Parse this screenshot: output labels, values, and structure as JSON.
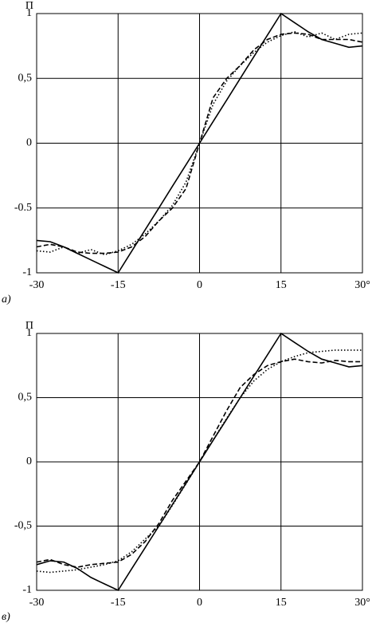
{
  "chart_data": [
    {
      "type": "line",
      "label": "а)",
      "ylabel": "П",
      "x": [
        -30,
        -27.5,
        -25,
        -22.5,
        -20,
        -17.5,
        -15,
        -12.5,
        -10,
        -7.5,
        -5,
        -2.5,
        0,
        2.5,
        5,
        7.5,
        10,
        12.5,
        15,
        17.5,
        20,
        22.5,
        25,
        27.5,
        30
      ],
      "xlim": [
        -30,
        30
      ],
      "ylim": [
        -1,
        1
      ],
      "xticks": [
        -30,
        -15,
        0,
        15,
        {
          "value": 30,
          "label": "30°"
        }
      ],
      "yticks": [
        1,
        {
          "value": 0.5,
          "label": "0,5"
        },
        0,
        -0.5,
        -1
      ],
      "grid": true,
      "series": [
        {
          "color": "#000",
          "style": "solid",
          "values": [
            -0.75,
            -0.76,
            -0.8,
            -0.85,
            -0.9,
            -0.95,
            -1,
            -0.833,
            -0.667,
            -0.5,
            -0.333,
            -0.167,
            0,
            0.167,
            0.333,
            0.5,
            0.667,
            0.833,
            1,
            0.93,
            0.86,
            0.8,
            0.77,
            0.74,
            0.75
          ]
        },
        {
          "color": "#000",
          "style": "dashed",
          "values": [
            -0.8,
            -0.78,
            -0.8,
            -0.84,
            -0.85,
            -0.85,
            -0.84,
            -0.8,
            -0.72,
            -0.6,
            -0.5,
            -0.35,
            0,
            0.35,
            0.5,
            0.6,
            0.72,
            0.8,
            0.84,
            0.85,
            0.84,
            0.8,
            0.8,
            0.8,
            0.78
          ]
        },
        {
          "color": "#000",
          "style": "dotted",
          "values": [
            -0.83,
            -0.84,
            -0.8,
            -0.85,
            -0.82,
            -0.86,
            -0.83,
            -0.78,
            -0.7,
            -0.6,
            -0.48,
            -0.3,
            0,
            0.3,
            0.48,
            0.6,
            0.7,
            0.78,
            0.83,
            0.86,
            0.82,
            0.85,
            0.8,
            0.84,
            0.85
          ]
        }
      ]
    },
    {
      "type": "line",
      "label": "в)",
      "ylabel": "П",
      "x": [
        -30,
        -27.5,
        -25,
        -22.5,
        -20,
        -17.5,
        -15,
        -12.5,
        -10,
        -7.5,
        -5,
        -2.5,
        0,
        2.5,
        5,
        7.5,
        10,
        12.5,
        15,
        17.5,
        20,
        22.5,
        25,
        27.5,
        30
      ],
      "xlim": [
        -30,
        30
      ],
      "ylim": [
        -1,
        1
      ],
      "xticks": [
        -30,
        -15,
        0,
        15,
        {
          "value": 30,
          "label": "30°"
        }
      ],
      "yticks": [
        1,
        {
          "value": 0.5,
          "label": "0,5"
        },
        0,
        {
          "value": -0.5,
          "label": "-0,5"
        },
        -1
      ],
      "grid": true,
      "series": [
        {
          "color": "#000",
          "style": "solid",
          "values": [
            -0.8,
            -0.77,
            -0.78,
            -0.83,
            -0.9,
            -0.95,
            -1,
            -0.833,
            -0.667,
            -0.5,
            -0.333,
            -0.167,
            0,
            0.167,
            0.333,
            0.5,
            0.667,
            0.833,
            1,
            0.93,
            0.86,
            0.8,
            0.77,
            0.74,
            0.75
          ]
        },
        {
          "color": "#000",
          "style": "dashed",
          "values": [
            -0.78,
            -0.76,
            -0.8,
            -0.82,
            -0.8,
            -0.79,
            -0.78,
            -0.72,
            -0.62,
            -0.48,
            -0.3,
            -0.15,
            0,
            0.2,
            0.4,
            0.58,
            0.68,
            0.75,
            0.78,
            0.8,
            0.78,
            0.77,
            0.79,
            0.78,
            0.78
          ]
        },
        {
          "color": "#000",
          "style": "dotted",
          "values": [
            -0.85,
            -0.86,
            -0.85,
            -0.84,
            -0.82,
            -0.8,
            -0.77,
            -0.7,
            -0.6,
            -0.5,
            -0.34,
            -0.17,
            0,
            0.17,
            0.34,
            0.5,
            0.63,
            0.72,
            0.78,
            0.82,
            0.85,
            0.86,
            0.87,
            0.87,
            0.87
          ]
        }
      ]
    }
  ]
}
